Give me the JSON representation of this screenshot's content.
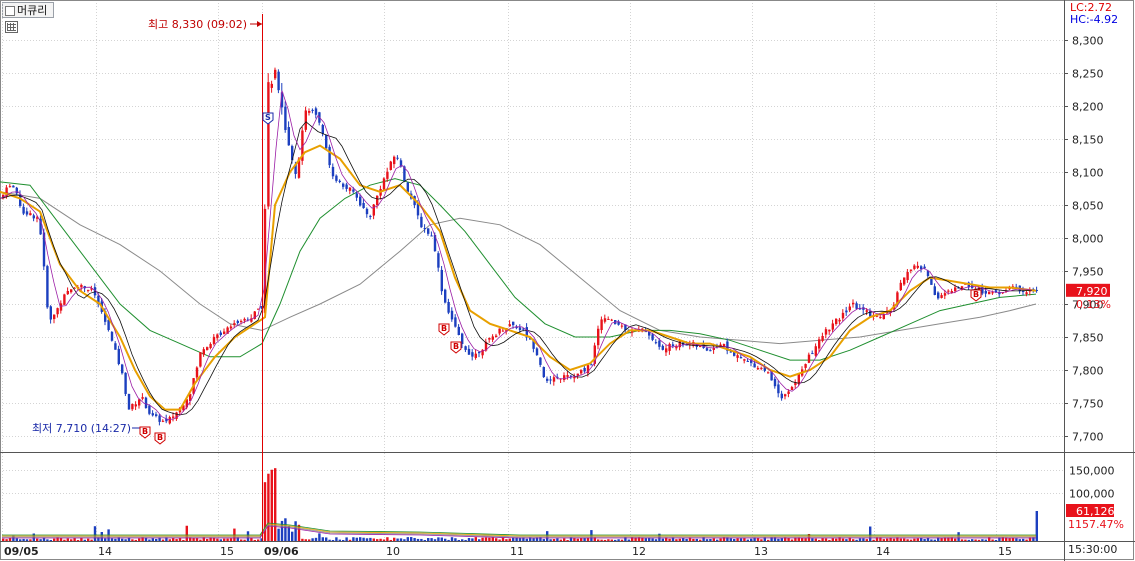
{
  "symbol": "머큐리",
  "corner": {
    "lc": "LC:2.72",
    "hc": "HC:-4.92"
  },
  "time_stamp": "15:30:00",
  "chart_data": {
    "type": "candlestick",
    "colors": {
      "up": "#e8121b",
      "down": "#1c3fbf",
      "ma5": "#9c1fa6",
      "ma10": "#0f0f0f",
      "ma20": "#e8a000",
      "ma60": "#1f8f2f",
      "ma120": "#8a8a8a"
    },
    "price_axis": {
      "min": 7680,
      "max": 8330,
      "ticks": [
        7700,
        7750,
        7800,
        7850,
        7900,
        7950,
        8000,
        8050,
        8100,
        8150,
        8200,
        8250,
        8300
      ]
    },
    "volume_axis": {
      "ticks": [
        100000,
        150000
      ]
    },
    "x_labels": [
      "09/05",
      "14",
      "15",
      "09/06",
      "10",
      "11",
      "12",
      "13",
      "14",
      "15"
    ],
    "annotations": {
      "high": "최고 8,330 (09:02)",
      "low": "최저 7,710 (14:27)"
    },
    "current": {
      "price": "7,920",
      "change": "0.13%",
      "volume": "61,126",
      "volume_change": "1157.47%"
    },
    "signals": [
      "B",
      "B",
      "S",
      "B",
      "B",
      "B"
    ],
    "price_path": [
      [
        0,
        8060
      ],
      [
        10,
        8085
      ],
      [
        22,
        8040
      ],
      [
        38,
        8030
      ],
      [
        48,
        7870
      ],
      [
        62,
        7910
      ],
      [
        75,
        7930
      ],
      [
        92,
        7920
      ],
      [
        105,
        7870
      ],
      [
        120,
        7800
      ],
      [
        128,
        7740
      ],
      [
        140,
        7760
      ],
      [
        150,
        7730
      ],
      [
        165,
        7720
      ],
      [
        178,
        7740
      ],
      [
        190,
        7770
      ],
      [
        200,
        7830
      ],
      [
        215,
        7850
      ],
      [
        230,
        7870
      ],
      [
        250,
        7880
      ],
      [
        262,
        7900
      ],
      [
        266,
        8230
      ],
      [
        275,
        8250
      ],
      [
        285,
        8150
      ],
      [
        295,
        8100
      ],
      [
        305,
        8200
      ],
      [
        318,
        8180
      ],
      [
        330,
        8100
      ],
      [
        340,
        8080
      ],
      [
        352,
        8070
      ],
      [
        368,
        8030
      ],
      [
        380,
        8080
      ],
      [
        395,
        8130
      ],
      [
        405,
        8080
      ],
      [
        420,
        8020
      ],
      [
        432,
        8000
      ],
      [
        442,
        7910
      ],
      [
        450,
        7880
      ],
      [
        460,
        7840
      ],
      [
        472,
        7820
      ],
      [
        485,
        7840
      ],
      [
        498,
        7860
      ],
      [
        510,
        7870
      ],
      [
        522,
        7860
      ],
      [
        535,
        7830
      ],
      [
        545,
        7780
      ],
      [
        560,
        7790
      ],
      [
        575,
        7790
      ],
      [
        590,
        7810
      ],
      [
        600,
        7880
      ],
      [
        615,
        7870
      ],
      [
        630,
        7860
      ],
      [
        645,
        7860
      ],
      [
        660,
        7830
      ],
      [
        675,
        7840
      ],
      [
        690,
        7840
      ],
      [
        705,
        7830
      ],
      [
        720,
        7840
      ],
      [
        735,
        7820
      ],
      [
        750,
        7810
      ],
      [
        765,
        7800
      ],
      [
        780,
        7760
      ],
      [
        790,
        7770
      ],
      [
        800,
        7800
      ],
      [
        812,
        7830
      ],
      [
        825,
        7860
      ],
      [
        840,
        7880
      ],
      [
        850,
        7900
      ],
      [
        862,
        7890
      ],
      [
        875,
        7880
      ],
      [
        890,
        7890
      ],
      [
        900,
        7930
      ],
      [
        912,
        7960
      ],
      [
        925,
        7950
      ],
      [
        935,
        7910
      ],
      [
        950,
        7920
      ],
      [
        965,
        7930
      ],
      [
        980,
        7920
      ],
      [
        995,
        7915
      ],
      [
        1010,
        7925
      ],
      [
        1025,
        7920
      ],
      [
        1036,
        7920
      ]
    ],
    "ma_paths": {
      "ma20": [
        [
          0,
          8070
        ],
        [
          20,
          8060
        ],
        [
          40,
          8040
        ],
        [
          60,
          7960
        ],
        [
          80,
          7920
        ],
        [
          100,
          7900
        ],
        [
          120,
          7850
        ],
        [
          135,
          7800
        ],
        [
          150,
          7760
        ],
        [
          165,
          7740
        ],
        [
          180,
          7740
        ],
        [
          195,
          7780
        ],
        [
          215,
          7820
        ],
        [
          235,
          7850
        ],
        [
          255,
          7870
        ],
        [
          265,
          7880
        ],
        [
          275,
          8050
        ],
        [
          290,
          8100
        ],
        [
          305,
          8130
        ],
        [
          320,
          8140
        ],
        [
          340,
          8120
        ],
        [
          360,
          8080
        ],
        [
          380,
          8070
        ],
        [
          400,
          8080
        ],
        [
          420,
          8050
        ],
        [
          440,
          8010
        ],
        [
          455,
          7940
        ],
        [
          470,
          7890
        ],
        [
          490,
          7870
        ],
        [
          510,
          7860
        ],
        [
          530,
          7850
        ],
        [
          550,
          7820
        ],
        [
          570,
          7800
        ],
        [
          590,
          7810
        ],
        [
          610,
          7840
        ],
        [
          630,
          7860
        ],
        [
          650,
          7860
        ],
        [
          670,
          7850
        ],
        [
          690,
          7840
        ],
        [
          710,
          7840
        ],
        [
          730,
          7830
        ],
        [
          750,
          7820
        ],
        [
          770,
          7800
        ],
        [
          790,
          7790
        ],
        [
          810,
          7800
        ],
        [
          830,
          7820
        ],
        [
          850,
          7860
        ],
        [
          870,
          7880
        ],
        [
          890,
          7890
        ],
        [
          910,
          7920
        ],
        [
          930,
          7940
        ],
        [
          950,
          7935
        ],
        [
          970,
          7930
        ],
        [
          990,
          7925
        ],
        [
          1010,
          7925
        ],
        [
          1036,
          7920
        ]
      ],
      "ma60": [
        [
          0,
          8085
        ],
        [
          30,
          8080
        ],
        [
          60,
          8020
        ],
        [
          90,
          7960
        ],
        [
          120,
          7900
        ],
        [
          150,
          7860
        ],
        [
          180,
          7840
        ],
        [
          210,
          7820
        ],
        [
          240,
          7820
        ],
        [
          262,
          7840
        ],
        [
          280,
          7900
        ],
        [
          300,
          7980
        ],
        [
          320,
          8030
        ],
        [
          345,
          8060
        ],
        [
          370,
          8080
        ],
        [
          395,
          8090
        ],
        [
          420,
          8080
        ],
        [
          440,
          8050
        ],
        [
          465,
          8010
        ],
        [
          490,
          7960
        ],
        [
          515,
          7910
        ],
        [
          545,
          7870
        ],
        [
          575,
          7850
        ],
        [
          610,
          7850
        ],
        [
          640,
          7860
        ],
        [
          670,
          7860
        ],
        [
          700,
          7855
        ],
        [
          730,
          7845
        ],
        [
          760,
          7830
        ],
        [
          790,
          7815
        ],
        [
          820,
          7815
        ],
        [
          850,
          7830
        ],
        [
          880,
          7850
        ],
        [
          910,
          7870
        ],
        [
          940,
          7890
        ],
        [
          970,
          7900
        ],
        [
          1000,
          7910
        ],
        [
          1036,
          7915
        ]
      ],
      "ma120": [
        [
          0,
          8070
        ],
        [
          40,
          8060
        ],
        [
          80,
          8020
        ],
        [
          120,
          7990
        ],
        [
          160,
          7950
        ],
        [
          200,
          7900
        ],
        [
          230,
          7870
        ],
        [
          262,
          7860
        ],
        [
          290,
          7880
        ],
        [
          320,
          7900
        ],
        [
          360,
          7930
        ],
        [
          400,
          7980
        ],
        [
          430,
          8020
        ],
        [
          460,
          8030
        ],
        [
          500,
          8020
        ],
        [
          540,
          7990
        ],
        [
          580,
          7940
        ],
        [
          620,
          7890
        ],
        [
          660,
          7860
        ],
        [
          700,
          7850
        ],
        [
          740,
          7845
        ],
        [
          780,
          7840
        ],
        [
          820,
          7845
        ],
        [
          860,
          7850
        ],
        [
          900,
          7860
        ],
        [
          940,
          7870
        ],
        [
          980,
          7880
        ],
        [
          1010,
          7890
        ],
        [
          1036,
          7900
        ]
      ]
    }
  }
}
